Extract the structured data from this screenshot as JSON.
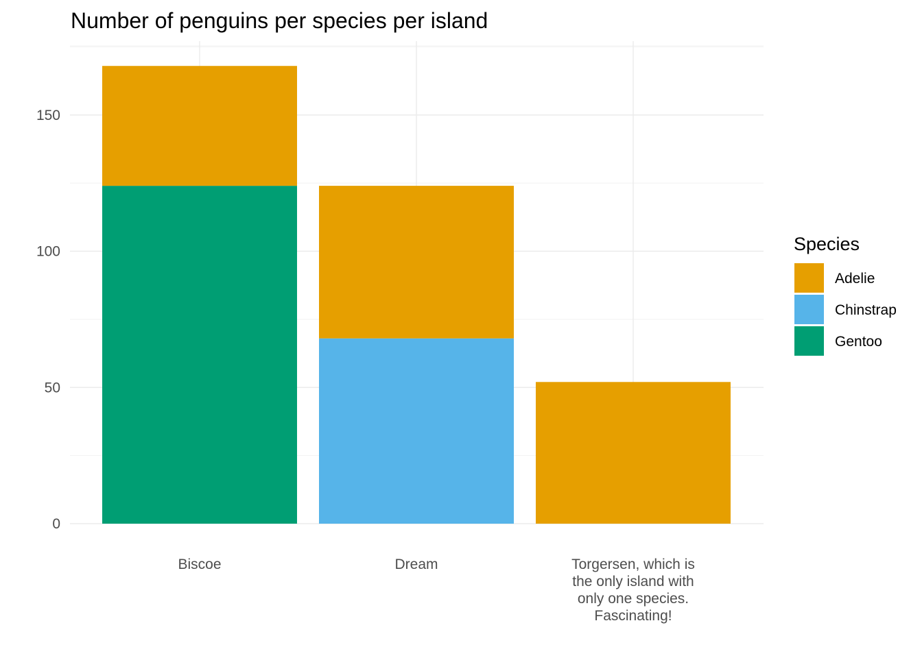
{
  "chart_data": {
    "type": "bar",
    "stacked": true,
    "title": "Number of penguins per species per island",
    "xlabel": "",
    "ylabel": "",
    "ylim": [
      0,
      168
    ],
    "yticks": [
      0,
      50,
      100,
      150
    ],
    "grid": true,
    "categories": [
      "Biscoe",
      "Dream",
      "Torgersen, which is\nthe only island with\nonly one species.\nFascinating!"
    ],
    "series": [
      {
        "name": "Gentoo",
        "color": "#009E73",
        "values": [
          124,
          0,
          0
        ]
      },
      {
        "name": "Chinstrap",
        "color": "#56B4E9",
        "values": [
          0,
          68,
          0
        ]
      },
      {
        "name": "Adelie",
        "color": "#E69F00",
        "values": [
          44,
          56,
          52
        ]
      }
    ],
    "legend": {
      "title": "Species",
      "position": "right",
      "order": [
        "Adelie",
        "Chinstrap",
        "Gentoo"
      ]
    }
  }
}
